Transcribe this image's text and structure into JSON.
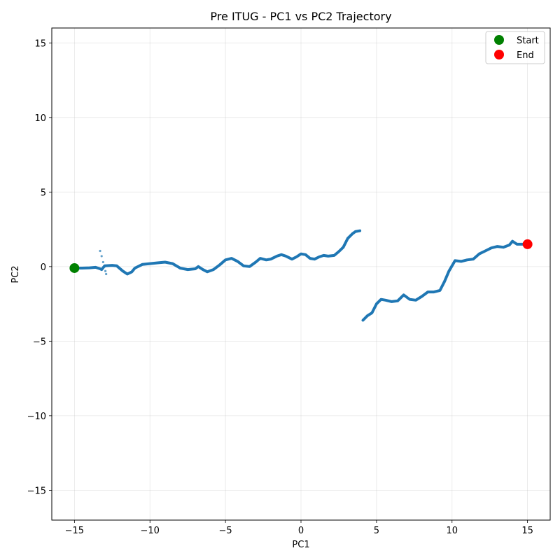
{
  "chart_data": {
    "type": "scatter",
    "title": "Pre ITUG - PC1 vs PC2 Trajectory",
    "xlabel": "PC1",
    "ylabel": "PC2",
    "xlim": [
      -16.5,
      16.5
    ],
    "ylim": [
      -17,
      16
    ],
    "x_ticks": [
      -15,
      -10,
      -5,
      0,
      5,
      10,
      15
    ],
    "y_ticks": [
      -15,
      -10,
      -5,
      0,
      5,
      10,
      15
    ],
    "x_tick_labels": [
      "−15",
      "−10",
      "−5",
      "0",
      "5",
      "10",
      "15"
    ],
    "y_tick_labels": [
      "−15",
      "−10",
      "−5",
      "0",
      "5",
      "10",
      "15"
    ],
    "grid": true,
    "legend_position": "top-right",
    "series": [
      {
        "color": "#1f77b4",
        "segments": [
          [
            [
              -15.0,
              -0.1
            ],
            [
              -14.5,
              -0.1
            ],
            [
              -14.0,
              -0.08
            ],
            [
              -13.6,
              -0.05
            ],
            [
              -13.3,
              -0.15
            ],
            [
              -13.2,
              -0.2
            ],
            [
              -13.0,
              0.05
            ],
            [
              -12.5,
              0.08
            ],
            [
              -12.2,
              0.05
            ],
            [
              -11.8,
              -0.3
            ],
            [
              -11.5,
              -0.5
            ],
            [
              -11.2,
              -0.35
            ],
            [
              -11.0,
              -0.1
            ],
            [
              -10.5,
              0.15
            ],
            [
              -10.0,
              0.2
            ],
            [
              -9.5,
              0.25
            ],
            [
              -9.0,
              0.3
            ],
            [
              -8.5,
              0.2
            ],
            [
              -8.0,
              -0.1
            ],
            [
              -7.5,
              -0.2
            ],
            [
              -7.0,
              -0.15
            ],
            [
              -6.8,
              0.0
            ],
            [
              -6.5,
              -0.2
            ],
            [
              -6.2,
              -0.35
            ],
            [
              -5.8,
              -0.2
            ],
            [
              -5.4,
              0.1
            ],
            [
              -5.0,
              0.45
            ],
            [
              -4.6,
              0.55
            ],
            [
              -4.2,
              0.35
            ],
            [
              -3.8,
              0.05
            ],
            [
              -3.4,
              0.0
            ],
            [
              -3.0,
              0.3
            ],
            [
              -2.7,
              0.55
            ],
            [
              -2.3,
              0.45
            ],
            [
              -2.0,
              0.5
            ],
            [
              -1.6,
              0.7
            ],
            [
              -1.3,
              0.8
            ],
            [
              -1.0,
              0.7
            ],
            [
              -0.6,
              0.5
            ],
            [
              -0.3,
              0.65
            ],
            [
              0.0,
              0.85
            ],
            [
              0.3,
              0.8
            ],
            [
              0.6,
              0.55
            ],
            [
              0.9,
              0.5
            ],
            [
              1.2,
              0.65
            ],
            [
              1.5,
              0.75
            ],
            [
              1.8,
              0.7
            ],
            [
              2.2,
              0.75
            ],
            [
              2.5,
              1.0
            ],
            [
              2.8,
              1.3
            ],
            [
              3.1,
              1.9
            ],
            [
              3.4,
              2.2
            ],
            [
              3.6,
              2.35
            ],
            [
              3.9,
              2.4
            ]
          ],
          [
            [
              4.1,
              -3.6
            ],
            [
              4.4,
              -3.3
            ],
            [
              4.7,
              -3.1
            ],
            [
              5.0,
              -2.5
            ],
            [
              5.3,
              -2.2
            ],
            [
              5.6,
              -2.25
            ],
            [
              6.0,
              -2.35
            ],
            [
              6.4,
              -2.3
            ],
            [
              6.8,
              -1.9
            ],
            [
              7.2,
              -2.2
            ],
            [
              7.6,
              -2.25
            ],
            [
              8.0,
              -2.0
            ],
            [
              8.4,
              -1.7
            ],
            [
              8.8,
              -1.7
            ],
            [
              9.2,
              -1.6
            ],
            [
              9.5,
              -1.0
            ],
            [
              9.8,
              -0.3
            ],
            [
              10.2,
              0.4
            ],
            [
              10.6,
              0.35
            ],
            [
              11.0,
              0.45
            ],
            [
              11.4,
              0.5
            ],
            [
              11.8,
              0.85
            ],
            [
              12.2,
              1.05
            ],
            [
              12.6,
              1.25
            ],
            [
              13.0,
              1.35
            ],
            [
              13.4,
              1.3
            ],
            [
              13.8,
              1.45
            ],
            [
              14.0,
              1.7
            ],
            [
              14.3,
              1.5
            ],
            [
              14.7,
              1.5
            ],
            [
              15.0,
              1.5
            ]
          ]
        ],
        "spike": [
          [
            -13.3,
            1.05
          ],
          [
            -13.2,
            0.7
          ],
          [
            -13.1,
            0.3
          ],
          [
            -13.0,
            0.0
          ],
          [
            -12.95,
            -0.3
          ],
          [
            -12.9,
            -0.5
          ]
        ]
      }
    ],
    "markers": [
      {
        "name": "Start",
        "x": -15.0,
        "y": -0.1,
        "color": "#008000"
      },
      {
        "name": "End",
        "x": 15.0,
        "y": 1.5,
        "color": "#ff0000"
      }
    ]
  }
}
